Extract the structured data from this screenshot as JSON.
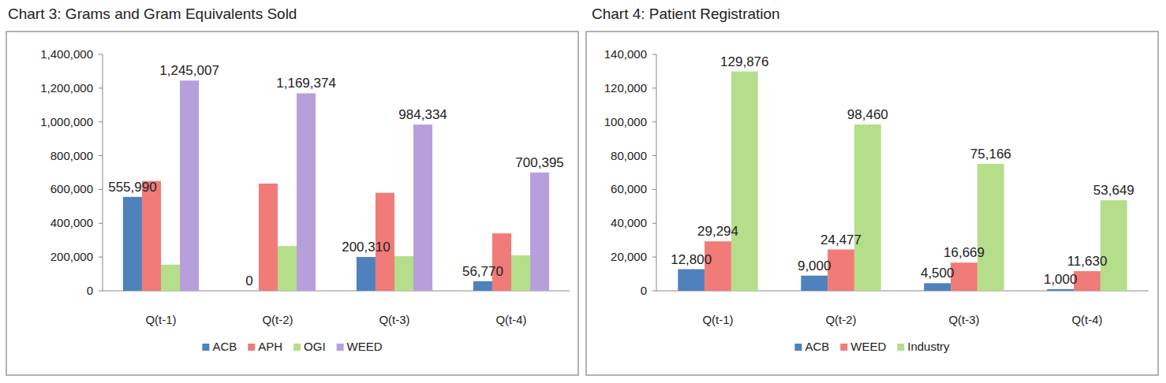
{
  "chart_data": [
    {
      "type": "bar",
      "title": "Chart 3: Grams and Gram Equivalents Sold",
      "categories": [
        "Q(t-1)",
        "Q(t-2)",
        "Q(t-3)",
        "Q(t-4)"
      ],
      "series": [
        {
          "name": "ACB",
          "color": "#4f81bd",
          "data_labels": true,
          "values": [
            555990,
            0,
            200310,
            56770
          ],
          "value_labels": [
            "555,990",
            "0",
            "200,310",
            "56,770"
          ]
        },
        {
          "name": "APH",
          "color": "#f07b78",
          "data_labels": false,
          "values": [
            650000,
            635000,
            580000,
            340000
          ]
        },
        {
          "name": "OGI",
          "color": "#b5de8a",
          "data_labels": false,
          "values": [
            155000,
            265000,
            205000,
            210000
          ]
        },
        {
          "name": "WEED",
          "color": "#b79fdb",
          "data_labels": true,
          "values": [
            1245007,
            1169374,
            984334,
            700395
          ],
          "value_labels": [
            "1,245,007",
            "1,169,374",
            "984,334",
            "700,395"
          ]
        }
      ],
      "ylim": [
        0,
        1400000
      ],
      "yticks": [
        0,
        {
          "value": 200000,
          "label": "200,000"
        },
        {
          "value": 400000,
          "label": "400,000"
        },
        {
          "value": 600000,
          "label": "600,000"
        },
        {
          "value": 800000,
          "label": "800,000"
        },
        {
          "value": 1000000,
          "label": "1,000,000"
        },
        {
          "value": 1200000,
          "label": "1,200,000"
        },
        {
          "value": 1400000,
          "label": "1,400,000"
        }
      ],
      "grid": false,
      "legend": "bottom",
      "data_labels": true
    },
    {
      "type": "bar",
      "title": "Chart 4: Patient Registration",
      "categories": [
        "Q(t-1)",
        "Q(t-2)",
        "Q(t-3)",
        "Q(t-4)"
      ],
      "series": [
        {
          "name": "ACB",
          "color": "#4f81bd",
          "data_labels": true,
          "values": [
            12800,
            9000,
            4500,
            1000
          ],
          "value_labels": [
            "12,800",
            "9,000",
            "4,500",
            "1,000"
          ]
        },
        {
          "name": "WEED",
          "color": "#f07b78",
          "data_labels": true,
          "values": [
            29294,
            24477,
            16669,
            11630
          ],
          "value_labels": [
            "29,294",
            "24,477",
            "16,669",
            "11,630"
          ]
        },
        {
          "name": "Industry",
          "color": "#b5de8a",
          "data_labels": true,
          "values": [
            129876,
            98460,
            75166,
            53649
          ],
          "value_labels": [
            "129,876",
            "98,460",
            "75,166",
            "53,649"
          ]
        }
      ],
      "ylim": [
        0,
        140000
      ],
      "yticks": [
        0,
        {
          "value": 20000,
          "label": "20,000"
        },
        {
          "value": 40000,
          "label": "40,000"
        },
        {
          "value": 60000,
          "label": "60,000"
        },
        {
          "value": 80000,
          "label": "80,000"
        },
        {
          "value": 100000,
          "label": "100,000"
        },
        {
          "value": 120000,
          "label": "120,000"
        },
        {
          "value": 140000,
          "label": "140,000"
        }
      ],
      "grid": false,
      "legend": "bottom",
      "data_labels": true
    }
  ]
}
